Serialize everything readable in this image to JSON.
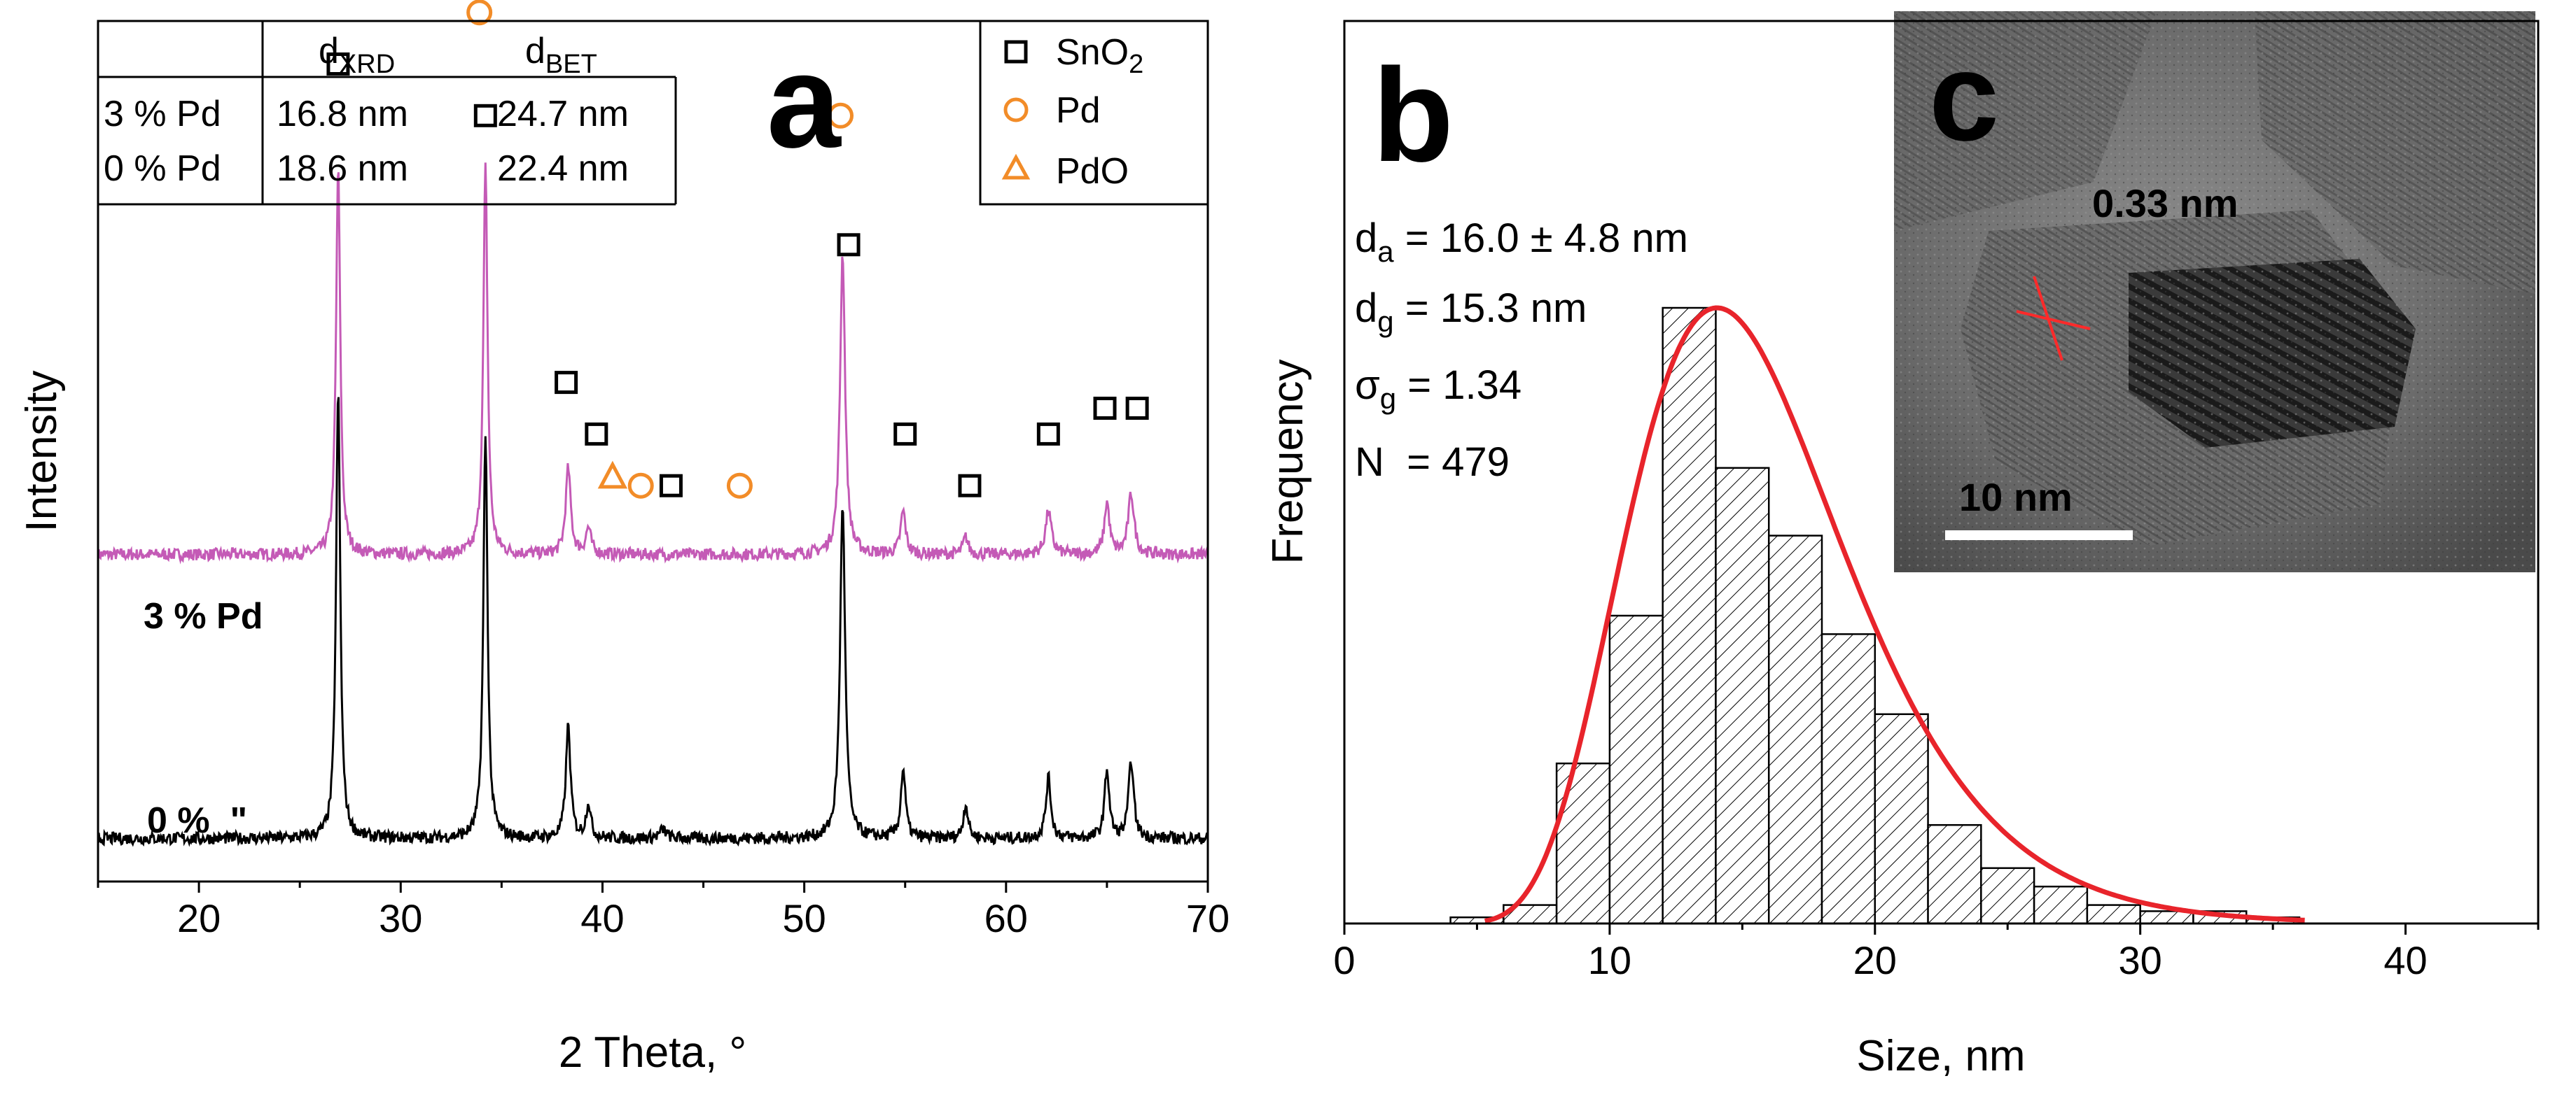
{
  "colors": {
    "tpd": "#c45ab6",
    "zero": "#000000",
    "pd_marker": "#f28c28",
    "fit": "#e8242b",
    "bar_edge": "#000000",
    "scale": "#ffffff",
    "lattice": "#ff2a2a"
  },
  "chart_data": [
    {
      "panel": "a",
      "type": "line",
      "title": "",
      "xlabel": "2 Theta, °",
      "ylabel": "Intensity",
      "xlim": [
        15,
        70
      ],
      "xticks": [
        20,
        30,
        40,
        50,
        60,
        70
      ],
      "y_units": "arbitrary",
      "series": [
        {
          "name": "3 % Pd",
          "baseline": 0.38,
          "noise": 0.007,
          "peaks": [
            [
              26.9,
              0.45,
              0.25
            ],
            [
              34.2,
              0.45,
              0.25
            ],
            [
              38.3,
              0.1,
              0.3
            ],
            [
              39.3,
              0.03,
              0.3
            ],
            [
              51.9,
              0.35,
              0.3
            ],
            [
              54.9,
              0.05,
              0.3
            ],
            [
              58.0,
              0.02,
              0.3
            ],
            [
              62.1,
              0.05,
              0.35
            ],
            [
              65.0,
              0.06,
              0.3
            ],
            [
              66.2,
              0.07,
              0.35
            ]
          ]
        },
        {
          "name": "0 %  \"",
          "baseline": 0.05,
          "noise": 0.007,
          "peaks": [
            [
              26.9,
              0.52,
              0.25
            ],
            [
              34.2,
              0.47,
              0.25
            ],
            [
              38.3,
              0.13,
              0.28
            ],
            [
              39.3,
              0.04,
              0.28
            ],
            [
              43.0,
              0.01,
              0.4
            ],
            [
              51.9,
              0.39,
              0.3
            ],
            [
              54.9,
              0.08,
              0.28
            ],
            [
              58.0,
              0.04,
              0.28
            ],
            [
              62.1,
              0.07,
              0.3
            ],
            [
              65.0,
              0.08,
              0.28
            ],
            [
              66.2,
              0.09,
              0.3
            ]
          ]
        }
      ],
      "markers": {
        "SnO2": [
          [
            26.9,
            0.95
          ],
          [
            34.2,
            0.89
          ],
          [
            38.2,
            0.58
          ],
          [
            39.7,
            0.52
          ],
          [
            43.4,
            0.46
          ],
          [
            52.2,
            0.74
          ],
          [
            55.0,
            0.52
          ],
          [
            58.2,
            0.46
          ],
          [
            62.1,
            0.52
          ],
          [
            64.9,
            0.55
          ],
          [
            66.5,
            0.55
          ]
        ],
        "Pd": [
          [
            33.9,
            1.01
          ],
          [
            51.8,
            0.89
          ],
          [
            41.9,
            0.46
          ],
          [
            46.8,
            0.46
          ]
        ],
        "PdO": [
          [
            40.5,
            0.47
          ]
        ]
      },
      "legend": [
        {
          "label": "SnO",
          "sub": "2",
          "marker": "square"
        },
        {
          "label": "Pd",
          "sub": "",
          "marker": "circle"
        },
        {
          "label": "PdO",
          "sub": "",
          "marker": "triangle"
        }
      ],
      "legend_position": "top-right",
      "table": {
        "headers": [
          {
            "main": "d",
            "sub": "XRD"
          },
          {
            "main": "d",
            "sub": "BET"
          }
        ],
        "rows": [
          {
            "label": "3 % Pd",
            "xrd": "16.8 nm",
            "bet": "24.7 nm"
          },
          {
            "label": "0 % Pd",
            "xrd": "18.6 nm",
            "bet": "22.4 nm"
          }
        ]
      },
      "panel_label": "a"
    },
    {
      "panel": "b",
      "type": "bar",
      "title": "",
      "xlabel": "Size, nm",
      "ylabel": "Frequency",
      "xlim": [
        0,
        45
      ],
      "xticks": [
        0,
        10,
        20,
        30,
        40
      ],
      "bin_width": 2,
      "bins": [
        [
          4,
          0.01
        ],
        [
          6,
          0.03
        ],
        [
          8,
          0.26
        ],
        [
          10,
          0.5
        ],
        [
          12,
          1.0
        ],
        [
          14,
          0.74
        ],
        [
          16,
          0.63
        ],
        [
          18,
          0.47
        ],
        [
          20,
          0.34
        ],
        [
          22,
          0.16
        ],
        [
          24,
          0.09
        ],
        [
          26,
          0.06
        ],
        [
          28,
          0.03
        ],
        [
          30,
          0.02
        ],
        [
          32,
          0.02
        ],
        [
          34,
          0.01
        ]
      ],
      "fit": {
        "type": "lognormal",
        "dg": 15.3,
        "sigma_g": 1.34,
        "peak": 1.0
      },
      "stats": [
        {
          "main": "d",
          "sub": "a",
          "value": " = 16.0 ± 4.8 nm"
        },
        {
          "main": "d",
          "sub": "g",
          "value": " = 15.3 nm"
        },
        {
          "main": "σ",
          "sub": "g",
          "value": " = 1.34"
        },
        {
          "main": "N",
          "sub": "",
          "value": "  = 479"
        }
      ],
      "panel_label": "b"
    }
  ],
  "inset": {
    "panel_label": "c",
    "lattice_label": "0.33 nm",
    "scale_label": "10 nm"
  }
}
